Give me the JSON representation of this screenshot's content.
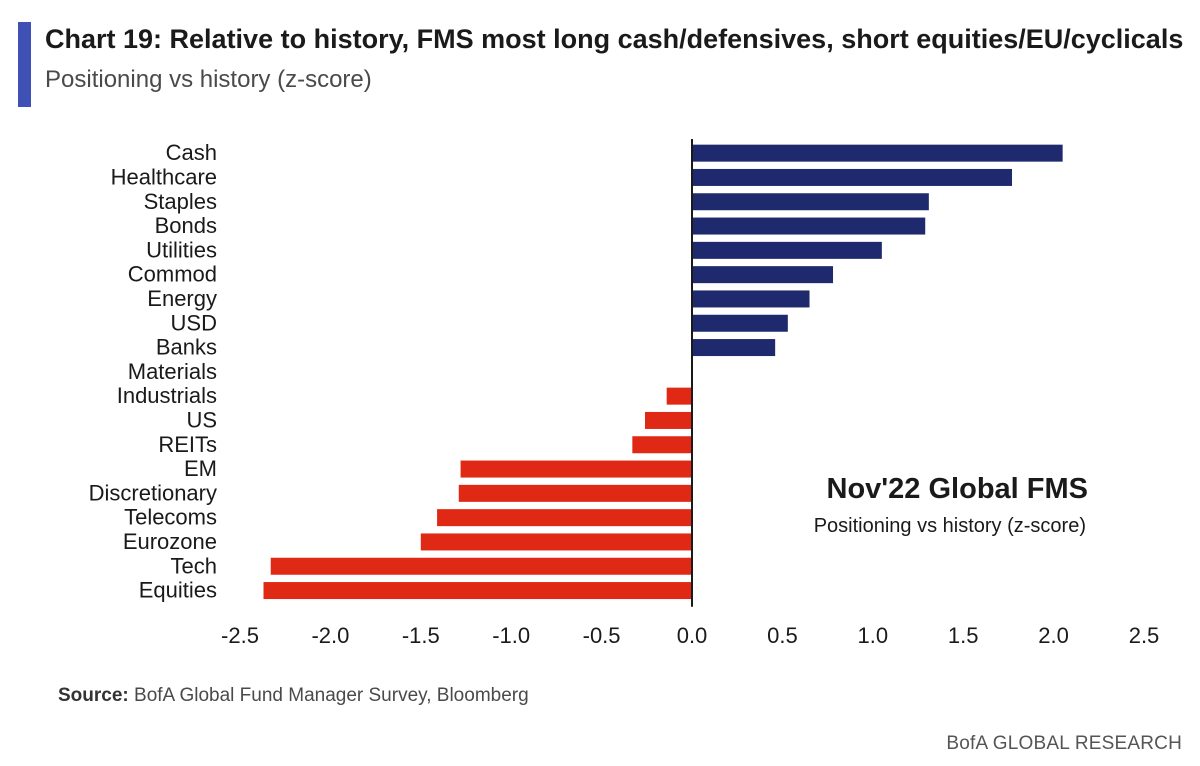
{
  "header": {
    "title": "Chart 19: Relative to history, FMS most long cash/defensives, short equities/EU/cyclicals",
    "subtitle": "Positioning vs history (z-score)"
  },
  "footer": {
    "source_label": "Source:",
    "source_text": " BofA Global Fund Manager Survey, Bloomberg",
    "brand": "BofA GLOBAL RESEARCH"
  },
  "chart_data": {
    "type": "bar",
    "orientation": "horizontal",
    "title": "Nov'22 Global FMS",
    "subtitle": "Positioning vs history (z-score)",
    "categories": [
      "Cash",
      "Healthcare",
      "Staples",
      "Bonds",
      "Utilities",
      "Commod",
      "Energy",
      "USD",
      "Banks",
      "Materials",
      "Industrials",
      "US",
      "REITs",
      "EM",
      "Discretionary",
      "Telecoms",
      "Eurozone",
      "Tech",
      "Equities"
    ],
    "values": [
      2.05,
      1.77,
      1.31,
      1.29,
      1.05,
      0.78,
      0.65,
      0.53,
      0.46,
      0.0,
      -0.14,
      -0.26,
      -0.33,
      -1.28,
      -1.29,
      -1.41,
      -1.5,
      -2.33,
      -2.37
    ],
    "xlim": [
      -2.5,
      2.5
    ],
    "xticks": [
      "-2.5",
      "-2.0",
      "-1.5",
      "-1.0",
      "-0.5",
      "0.0",
      "0.5",
      "1.0",
      "1.5",
      "2.0",
      "2.5"
    ],
    "xtick_values": [
      -2.5,
      -2.0,
      -1.5,
      -1.0,
      -0.5,
      0.0,
      0.5,
      1.0,
      1.5,
      2.0,
      2.5
    ],
    "colors": {
      "positive": "#1f2a6e",
      "negative": "#e02914",
      "axis": "#1a1a1a"
    },
    "xlabel": "",
    "ylabel": ""
  }
}
